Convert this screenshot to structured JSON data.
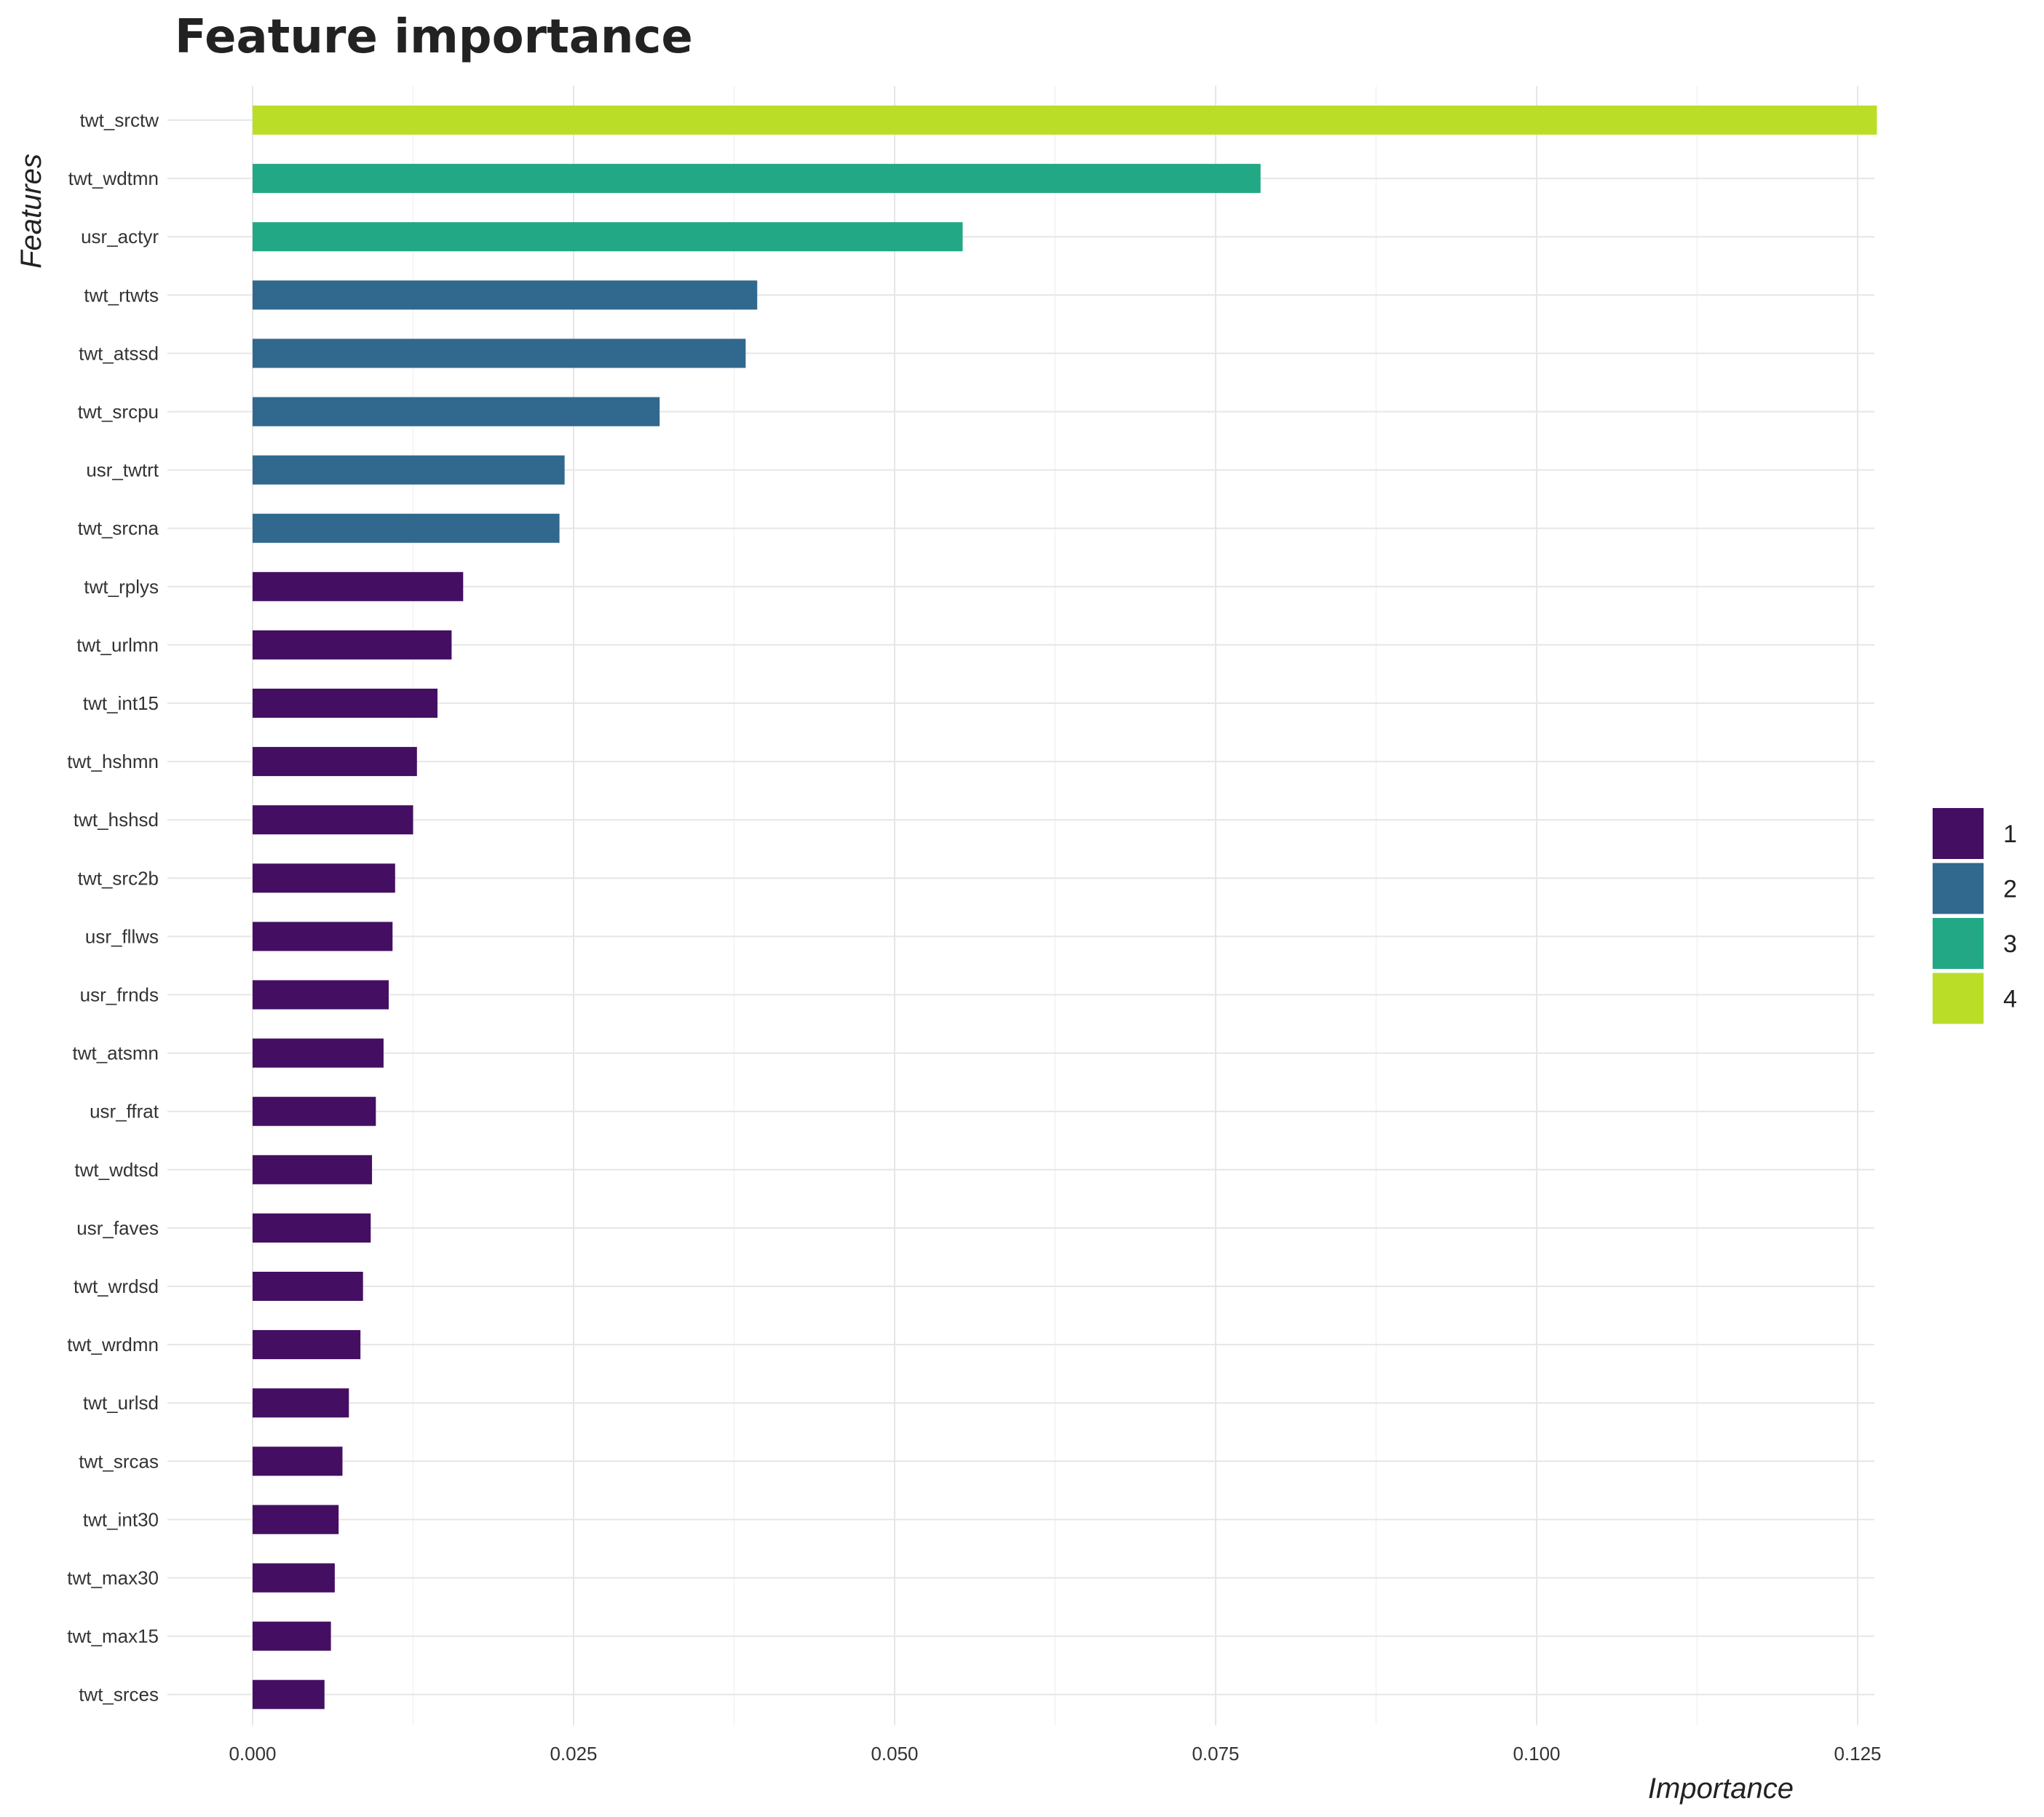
{
  "chart_data": {
    "type": "bar",
    "orientation": "horizontal",
    "title": "Feature importance",
    "xlabel": "Importance",
    "ylabel": "Features",
    "xlim": [
      0,
      0.125
    ],
    "x_ticks": [
      "0.000",
      "0.025",
      "0.050",
      "0.075",
      "0.100",
      "0.125"
    ],
    "grid": true,
    "legend_position": "right",
    "legend": [
      {
        "label": "1",
        "color": "#440f62"
      },
      {
        "label": "2",
        "color": "#31688e"
      },
      {
        "label": "3",
        "color": "#22a884"
      },
      {
        "label": "4",
        "color": "#bade28"
      }
    ],
    "bars": [
      {
        "feature": "twt_srctw",
        "value": 0.1265,
        "group": "4"
      },
      {
        "feature": "twt_wdtmn",
        "value": 0.0785,
        "group": "3"
      },
      {
        "feature": "usr_actyr",
        "value": 0.0553,
        "group": "3"
      },
      {
        "feature": "twt_rtwts",
        "value": 0.0393,
        "group": "2"
      },
      {
        "feature": "twt_atssd",
        "value": 0.0384,
        "group": "2"
      },
      {
        "feature": "twt_srcpu",
        "value": 0.0317,
        "group": "2"
      },
      {
        "feature": "usr_twtrt",
        "value": 0.0243,
        "group": "2"
      },
      {
        "feature": "twt_srcna",
        "value": 0.0239,
        "group": "2"
      },
      {
        "feature": "twt_rplys",
        "value": 0.0164,
        "group": "1"
      },
      {
        "feature": "twt_urlmn",
        "value": 0.0155,
        "group": "1"
      },
      {
        "feature": "twt_int15",
        "value": 0.0144,
        "group": "1"
      },
      {
        "feature": "twt_hshmn",
        "value": 0.0128,
        "group": "1"
      },
      {
        "feature": "twt_hshsd",
        "value": 0.0125,
        "group": "1"
      },
      {
        "feature": "twt_src2b",
        "value": 0.0111,
        "group": "1"
      },
      {
        "feature": "usr_fllws",
        "value": 0.0109,
        "group": "1"
      },
      {
        "feature": "usr_frnds",
        "value": 0.0106,
        "group": "1"
      },
      {
        "feature": "twt_atsmn",
        "value": 0.0102,
        "group": "1"
      },
      {
        "feature": "usr_ffrat",
        "value": 0.0096,
        "group": "1"
      },
      {
        "feature": "twt_wdtsd",
        "value": 0.0093,
        "group": "1"
      },
      {
        "feature": "usr_faves",
        "value": 0.0092,
        "group": "1"
      },
      {
        "feature": "twt_wrdsd",
        "value": 0.0086,
        "group": "1"
      },
      {
        "feature": "twt_wrdmn",
        "value": 0.0084,
        "group": "1"
      },
      {
        "feature": "twt_urlsd",
        "value": 0.0075,
        "group": "1"
      },
      {
        "feature": "twt_srcas",
        "value": 0.007,
        "group": "1"
      },
      {
        "feature": "twt_int30",
        "value": 0.0067,
        "group": "1"
      },
      {
        "feature": "twt_max30",
        "value": 0.0064,
        "group": "1"
      },
      {
        "feature": "twt_max15",
        "value": 0.0061,
        "group": "1"
      },
      {
        "feature": "twt_srces",
        "value": 0.0056,
        "group": "1"
      }
    ]
  }
}
